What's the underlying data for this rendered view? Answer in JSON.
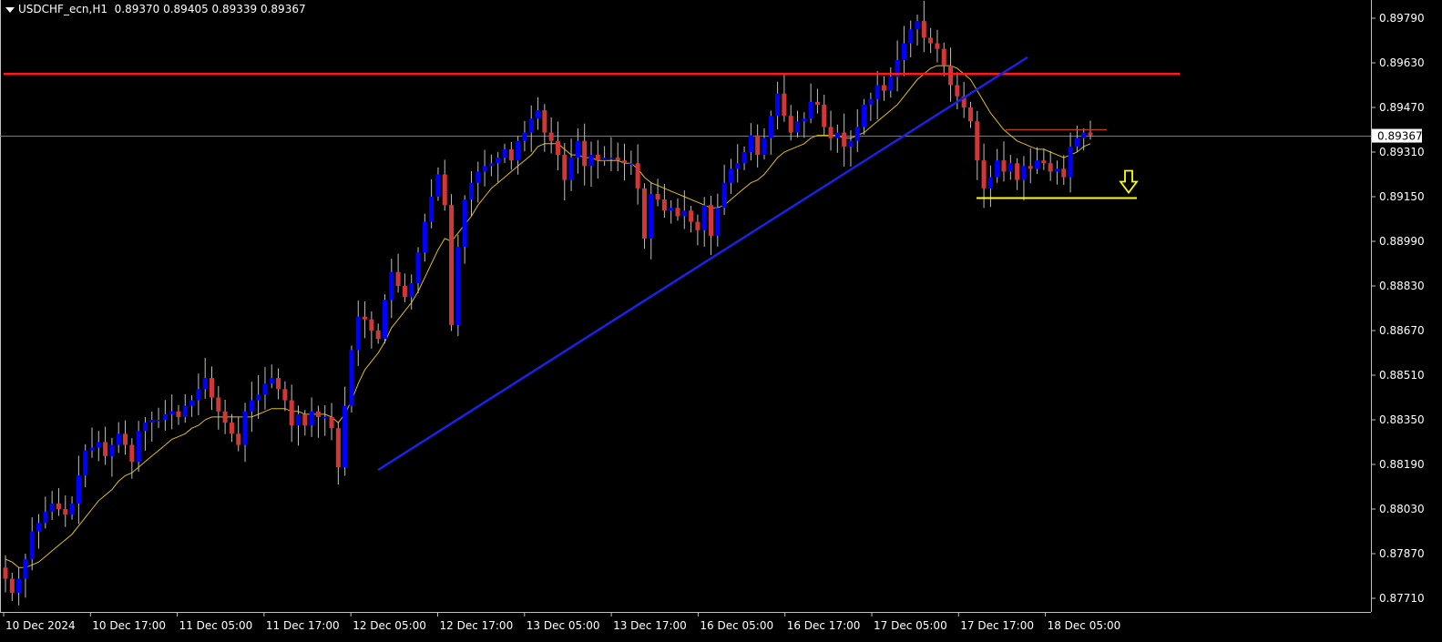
{
  "header": {
    "symbol": "USDCHF_ecn,H1",
    "ohlc": "0.89370 0.89405 0.89339 0.89367"
  },
  "chart_data": {
    "type": "candlestick",
    "symbol": "USDCHF_ecn",
    "timeframe": "H1",
    "ylim": [
      0.87685,
      0.8983
    ],
    "y_ticks": [
      "0.89790",
      "0.89630",
      "0.89470",
      "0.89310",
      "0.89150",
      "0.88990",
      "0.88830",
      "0.88670",
      "0.88510",
      "0.88350",
      "0.88190",
      "0.88030",
      "0.87870",
      "0.87710"
    ],
    "x_ticks": [
      "10 Dec 2024",
      "10 Dec 17:00",
      "11 Dec 05:00",
      "11 Dec 17:00",
      "12 Dec 05:00",
      "12 Dec 17:00",
      "13 Dec 05:00",
      "13 Dec 17:00",
      "16 Dec 05:00",
      "16 Dec 17:00",
      "17 Dec 05:00",
      "17 Dec 17:00",
      "18 Dec 05:00"
    ],
    "current_price": "0.89367",
    "colors": {
      "bull": "#0000ff",
      "bear": "#d03838",
      "wick": "#bfbfbf",
      "ma": "#e0c020",
      "resistance": "#ff1a1a",
      "trendline": "#1a22e6",
      "support": "#ffff00",
      "range_top": "#b04020",
      "price_line": "#7a7a7a",
      "arrow": "#ffff00"
    },
    "series_close_path": [
      0.8778,
      0.8773,
      0.8778,
      0.8785,
      0.8795,
      0.8798,
      0.8802,
      0.8805,
      0.8803,
      0.8801,
      0.8805,
      0.8815,
      0.8824,
      0.8825,
      0.8827,
      0.8822,
      0.8826,
      0.883,
      0.8826,
      0.882,
      0.8831,
      0.8834,
      0.8835,
      0.8835,
      0.8837,
      0.8838,
      0.8836,
      0.884,
      0.8842,
      0.8846,
      0.885,
      0.8843,
      0.8838,
      0.8834,
      0.883,
      0.8826,
      0.8838,
      0.8842,
      0.8844,
      0.8848,
      0.885,
      0.8846,
      0.8842,
      0.8833,
      0.8837,
      0.8833,
      0.8838,
      0.8836,
      0.8836,
      0.8832,
      0.8818,
      0.884,
      0.886,
      0.8872,
      0.8871,
      0.8867,
      0.8864,
      0.8878,
      0.8888,
      0.8883,
      0.8879,
      0.8884,
      0.8895,
      0.8906,
      0.8915,
      0.8923,
      0.8912,
      0.8869,
      0.8897,
      0.8914,
      0.892,
      0.8924,
      0.8926,
      0.8927,
      0.8929,
      0.8932,
      0.8928,
      0.8935,
      0.8938,
      0.8943,
      0.8946,
      0.8938,
      0.8935,
      0.893,
      0.8921,
      0.8929,
      0.8935,
      0.8926,
      0.893,
      0.8928,
      0.8929,
      0.8929,
      0.8928,
      0.8927,
      0.8927,
      0.8918,
      0.89,
      0.8916,
      0.8914,
      0.891,
      0.8911,
      0.8908,
      0.891,
      0.8906,
      0.8903,
      0.8912,
      0.8901,
      0.8911,
      0.892,
      0.8925,
      0.8927,
      0.8931,
      0.8937,
      0.893,
      0.8936,
      0.8944,
      0.8952,
      0.8944,
      0.8938,
      0.8942,
      0.8943,
      0.8949,
      0.8948,
      0.894,
      0.8936,
      0.8938,
      0.8933,
      0.8935,
      0.894,
      0.8948,
      0.895,
      0.8955,
      0.8953,
      0.8958,
      0.8964,
      0.897,
      0.8975,
      0.8978,
      0.8972,
      0.897,
      0.8968,
      0.8962,
      0.8955,
      0.8951,
      0.8947,
      0.8942,
      0.8928,
      0.8918,
      0.8922,
      0.8928,
      0.8924,
      0.8927,
      0.8921,
      0.8926,
      0.8925,
      0.8928,
      0.8927,
      0.8924,
      0.8925,
      0.8922,
      0.8933,
      0.8936,
      0.8938,
      0.8937
    ],
    "ma_path": [
      0.8785,
      0.8784,
      0.8782,
      0.8782,
      0.8783,
      0.8784,
      0.8786,
      0.8788,
      0.879,
      0.8792,
      0.8794,
      0.8797,
      0.88,
      0.8803,
      0.8806,
      0.8808,
      0.881,
      0.8813,
      0.8815,
      0.8816,
      0.8818,
      0.882,
      0.8822,
      0.8824,
      0.8826,
      0.8828,
      0.8829,
      0.883,
      0.8832,
      0.8833,
      0.8835,
      0.8836,
      0.8836,
      0.8836,
      0.8836,
      0.8836,
      0.8836,
      0.8836,
      0.8837,
      0.8838,
      0.8839,
      0.8839,
      0.8839,
      0.8838,
      0.8838,
      0.8837,
      0.8837,
      0.8837,
      0.8837,
      0.8836,
      0.8834,
      0.8837,
      0.8842,
      0.8848,
      0.8853,
      0.8856,
      0.8859,
      0.8863,
      0.8868,
      0.8871,
      0.8874,
      0.8877,
      0.8881,
      0.8886,
      0.8891,
      0.8896,
      0.89,
      0.8899,
      0.8902,
      0.8905,
      0.8908,
      0.8912,
      0.8915,
      0.8918,
      0.892,
      0.8922,
      0.8924,
      0.8926,
      0.8928,
      0.893,
      0.8933,
      0.8934,
      0.8934,
      0.8934,
      0.8932,
      0.893,
      0.893,
      0.8929,
      0.8929,
      0.8928,
      0.8928,
      0.8928,
      0.8928,
      0.8927,
      0.8927,
      0.8925,
      0.8922,
      0.892,
      0.8919,
      0.8918,
      0.8917,
      0.8916,
      0.8915,
      0.8914,
      0.8913,
      0.8912,
      0.8911,
      0.8911,
      0.8912,
      0.8914,
      0.8916,
      0.8918,
      0.892,
      0.8921,
      0.8923,
      0.8926,
      0.8929,
      0.8931,
      0.8932,
      0.8933,
      0.8934,
      0.8936,
      0.8937,
      0.8937,
      0.8937,
      0.8937,
      0.8936,
      0.8936,
      0.8937,
      0.8938,
      0.894,
      0.8942,
      0.8944,
      0.8946,
      0.8948,
      0.8951,
      0.8954,
      0.8957,
      0.8959,
      0.8961,
      0.8962,
      0.8962,
      0.8962,
      0.8961,
      0.8959,
      0.8957,
      0.8953,
      0.8949,
      0.8945,
      0.8942,
      0.8939,
      0.8937,
      0.8935,
      0.8934,
      0.8933,
      0.8932,
      0.8932,
      0.8931,
      0.893,
      0.8929,
      0.893,
      0.8931,
      0.8933,
      0.8934
    ],
    "annotations": {
      "resistance_level": 0.8959,
      "support_level": 0.89145,
      "range_top_level": 0.8939,
      "trendline_from": {
        "x": "12 Dec 05:00",
        "y": 0.8817
      },
      "trendline_to": {
        "x": "18 Dec",
        "y": 0.8965
      }
    }
  }
}
